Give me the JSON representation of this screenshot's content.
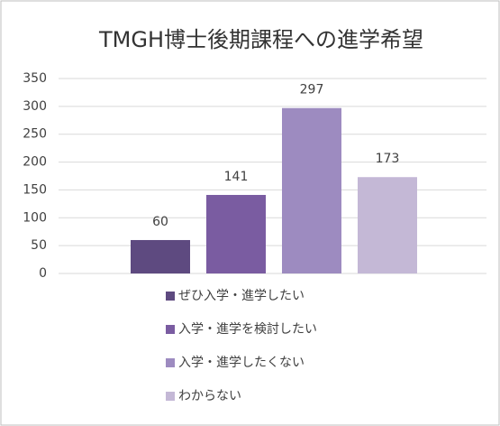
{
  "chart_data": {
    "type": "bar",
    "title": "TMGH博士後期課程への進学希望",
    "categories": [
      null
    ],
    "series": [
      {
        "name": "ぜひ入学・進学したい",
        "color": "#5e4a80",
        "values": [
          60
        ]
      },
      {
        "name": "入学・進学を検討したい",
        "color": "#7a5ca1",
        "values": [
          141
        ]
      },
      {
        "name": "入学・進学したくない",
        "color": "#9d8bc0",
        "values": [
          297
        ]
      },
      {
        "name": "わからない",
        "color": "#c4b8d6",
        "values": [
          173
        ]
      }
    ],
    "ylim": [
      0,
      350
    ],
    "yticks": [
      0,
      50,
      100,
      150,
      200,
      250,
      300,
      350
    ],
    "grid": true,
    "legend": "bottom"
  }
}
